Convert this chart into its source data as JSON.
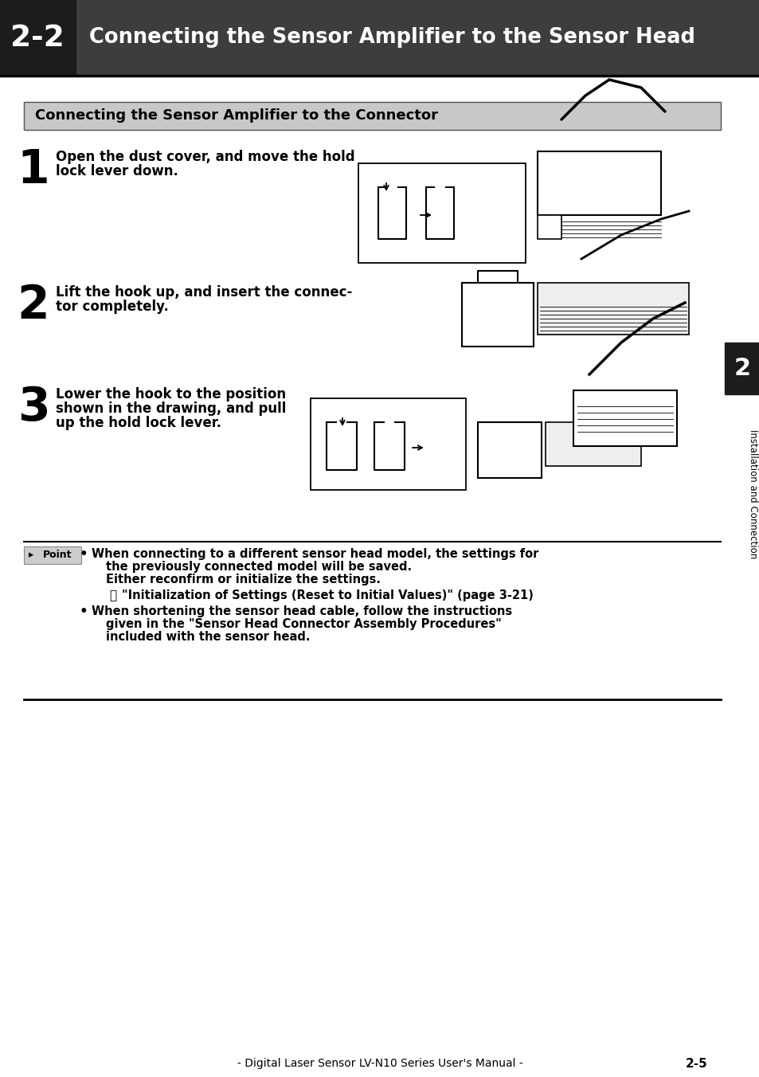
{
  "page_bg": "#ffffff",
  "header_bg": "#3d3d3d",
  "header_numbox_bg": "#1c1c1c",
  "header_text": "2-2",
  "header_title": "Connecting the Sensor Amplifier to the Sensor Head",
  "section_bg": "#c8c8c8",
  "section_title": "Connecting the Sensor Amplifier to the Connector",
  "step1_num": "1",
  "step1_line1": "Open the dust cover, and move the hold",
  "step1_line2": "lock lever down.",
  "step2_num": "2",
  "step2_line1": "Lift the hook up, and insert the connec-",
  "step2_line2": "tor completely.",
  "step3_num": "3",
  "step3_line1": "Lower the hook to the position",
  "step3_line2": "shown in the drawing, and pull",
  "step3_line3": "up the hold lock lever.",
  "point_label": "Point",
  "pt_b1_l1": "When connecting to a different sensor head model, the settings for",
  "pt_b1_l2": "the previously connected model will be saved.",
  "pt_b1_l3": "Either reconfirm or initialize the settings.",
  "pt_ref": "\"Initialization of Settings (Reset to Initial Values)\" (page 3-21)",
  "pt_b2_l1": "When shortening the sensor head cable, follow the instructions",
  "pt_b2_l2": "given in the \"Sensor Head Connector Assembly Procedures\"",
  "pt_b2_l3": "included with the sensor head.",
  "footer_text": "- Digital Laser Sensor LV-N10 Series User's Manual -",
  "footer_page": "2-5",
  "sidebar_num": "2",
  "sidebar_label": "Installation and Connection"
}
